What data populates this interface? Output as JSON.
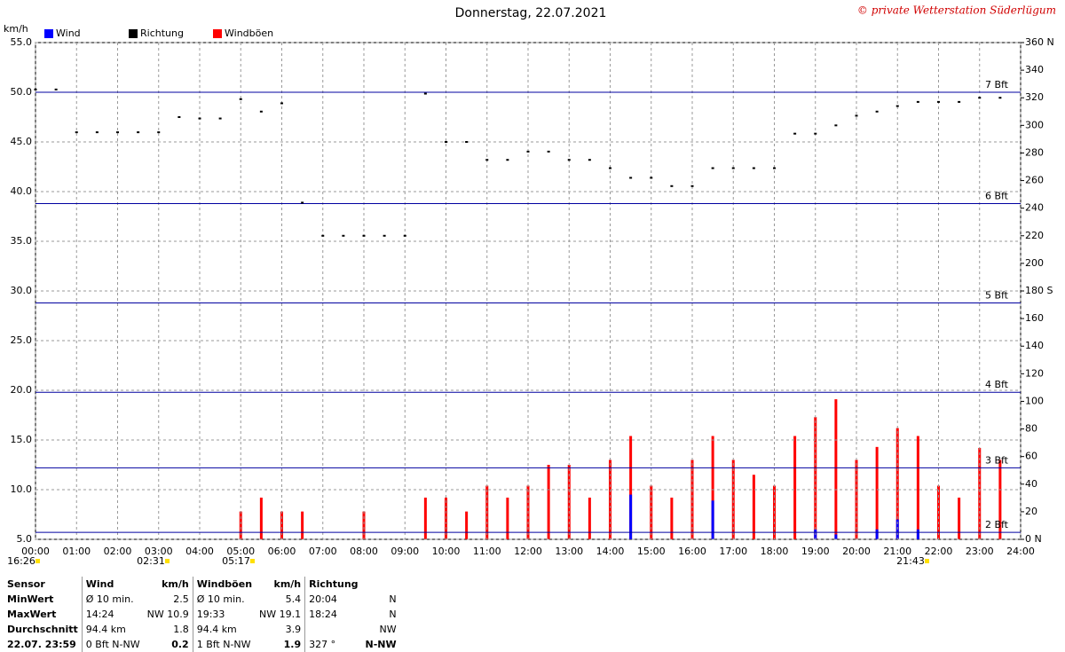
{
  "chart_data": {
    "type": "wind",
    "title": "Donnerstag, 22.07.2021",
    "copyright": "© private Wetterstation Süderlügum",
    "y_label": "km/h",
    "xlim": [
      0,
      24
    ],
    "xticks": [
      {
        "value": 0,
        "label": "00:00"
      },
      {
        "value": 1,
        "label": "01:00"
      },
      {
        "value": 2,
        "label": "02:00"
      },
      {
        "value": 3,
        "label": "03:00"
      },
      {
        "value": 4,
        "label": "04:00"
      },
      {
        "value": 5,
        "label": "05:00"
      },
      {
        "value": 6,
        "label": "06:00"
      },
      {
        "value": 7,
        "label": "07:00"
      },
      {
        "value": 8,
        "label": "08:00"
      },
      {
        "value": 9,
        "label": "09:00"
      },
      {
        "value": 10,
        "label": "10:00"
      },
      {
        "value": 11,
        "label": "11:00"
      },
      {
        "value": 12,
        "label": "12:00"
      },
      {
        "value": 13,
        "label": "13:00"
      },
      {
        "value": 14,
        "label": "14:00"
      },
      {
        "value": 15,
        "label": "15:00"
      },
      {
        "value": 16,
        "label": "16:00"
      },
      {
        "value": 17,
        "label": "17:00"
      },
      {
        "value": 18,
        "label": "18:00"
      },
      {
        "value": 19,
        "label": "19:00"
      },
      {
        "value": 20,
        "label": "20:00"
      },
      {
        "value": 21,
        "label": "21:00"
      },
      {
        "value": 22,
        "label": "22:00"
      },
      {
        "value": 23,
        "label": "23:00"
      },
      {
        "value": 24,
        "label": "24:00"
      }
    ],
    "ylim": [
      5,
      55
    ],
    "yticks": [
      {
        "value": 5,
        "label": "5.0"
      },
      {
        "value": 10,
        "label": "10.0"
      },
      {
        "value": 15,
        "label": "15.0"
      },
      {
        "value": 20,
        "label": "20.0"
      },
      {
        "value": 25,
        "label": "25.0"
      },
      {
        "value": 30,
        "label": "30.0"
      },
      {
        "value": 35,
        "label": "35.0"
      },
      {
        "value": 40,
        "label": "40.0"
      },
      {
        "value": 45,
        "label": "45.0"
      },
      {
        "value": 50,
        "label": "50.0"
      },
      {
        "value": 55,
        "label": "55.0"
      }
    ],
    "y2lim": [
      0,
      360
    ],
    "y2ticks": [
      {
        "value": 0,
        "label": "0 N"
      },
      20,
      40,
      60,
      80,
      100,
      120,
      140,
      160,
      {
        "value": 180,
        "label": "180 S"
      },
      200,
      220,
      240,
      260,
      280,
      300,
      320,
      340,
      {
        "value": 360,
        "label": "360 N"
      }
    ],
    "grid": true,
    "reference_lines": [
      {
        "value": 5.7,
        "label": "2 Bft"
      },
      {
        "value": 12.2,
        "label": "3 Bft"
      },
      {
        "value": 19.8,
        "label": "4 Bft"
      },
      {
        "value": 28.8,
        "label": "5 Bft"
      },
      {
        "value": 38.8,
        "label": "6 Bft"
      },
      {
        "value": 50.0,
        "label": "7 Bft"
      }
    ],
    "reference_color": "#0000a0",
    "x": [
      0,
      0.5,
      1,
      1.5,
      2,
      2.5,
      3,
      3.5,
      4,
      4.5,
      5,
      5.5,
      6,
      6.5,
      7,
      7.5,
      8,
      8.5,
      9,
      9.5,
      10,
      10.5,
      11,
      11.5,
      12,
      12.5,
      13,
      13.5,
      14,
      14.5,
      15,
      15.5,
      16,
      16.5,
      17,
      17.5,
      18,
      18.5,
      19,
      19.5,
      20,
      20.5,
      21,
      21.5,
      22,
      22.5,
      23,
      23.5
    ],
    "series": [
      {
        "name": "Wind",
        "color": "#0000ff",
        "mark": "bar",
        "values": [
          0,
          0,
          0,
          0,
          0,
          0,
          0,
          0,
          0,
          0,
          1.5,
          2,
          1.5,
          1,
          0,
          0,
          1,
          0,
          0,
          1.5,
          2,
          2,
          2.5,
          2,
          2.5,
          3,
          3.5,
          2.5,
          4,
          9.5,
          3.5,
          3,
          5,
          8.9,
          5,
          4,
          3,
          5,
          6,
          5.5,
          5,
          6,
          7,
          6,
          3,
          2,
          5,
          4
        ]
      },
      {
        "name": "Richtung",
        "color": "#000000",
        "mark": "point",
        "axis": "y2",
        "values": [
          326,
          326,
          295,
          295,
          295,
          295,
          295,
          306,
          305,
          305,
          319,
          310,
          316,
          244,
          220,
          220,
          220,
          220,
          220,
          323,
          288,
          288,
          275,
          275,
          281,
          281,
          275,
          275,
          269,
          262,
          262,
          256,
          256,
          269,
          269,
          269,
          269,
          294,
          294,
          300,
          307,
          310,
          314,
          317,
          317,
          317,
          320,
          320
        ]
      },
      {
        "name": "Windböen",
        "color": "#ff0000",
        "mark": "bar",
        "values": [
          0,
          0,
          0,
          0,
          0,
          0,
          0,
          0,
          0,
          0,
          7.8,
          9.2,
          7.8,
          7.8,
          0,
          0,
          7.8,
          0,
          0,
          9.2,
          9.2,
          7.8,
          10.4,
          9.2,
          10.4,
          12.5,
          12.5,
          9.2,
          13.0,
          15.4,
          10.4,
          9.2,
          13.0,
          15.4,
          13.0,
          11.5,
          10.4,
          15.4,
          17.3,
          19.1,
          13.0,
          14.3,
          16.2,
          15.4,
          10.4,
          9.2,
          14.2,
          13.0
        ]
      }
    ],
    "annotations": [
      "16:26",
      "02:31",
      "05:17",
      "21:43"
    ]
  },
  "table": {
    "header": [
      "Sensor",
      "Wind",
      "km/h",
      "Windböen",
      "km/h",
      "Richtung",
      ""
    ],
    "rows": [
      [
        "MinWert",
        "Ø 10 min.",
        "2.5",
        "Ø 10 min.",
        "5.4",
        "20:04",
        "N"
      ],
      [
        "MaxWert",
        "14:24",
        "NW 10.9",
        "19:33",
        "NW 19.1",
        "18:24",
        "N"
      ],
      [
        "Durchschnitt",
        "94.4 km",
        "1.8",
        "94.4 km",
        "3.9",
        "",
        "NW"
      ],
      [
        "22.07. 23:59",
        "0 Bft N-NW",
        "0.2",
        "1 Bft N-NW",
        "1.9",
        "327 °",
        "N-NW"
      ]
    ]
  }
}
